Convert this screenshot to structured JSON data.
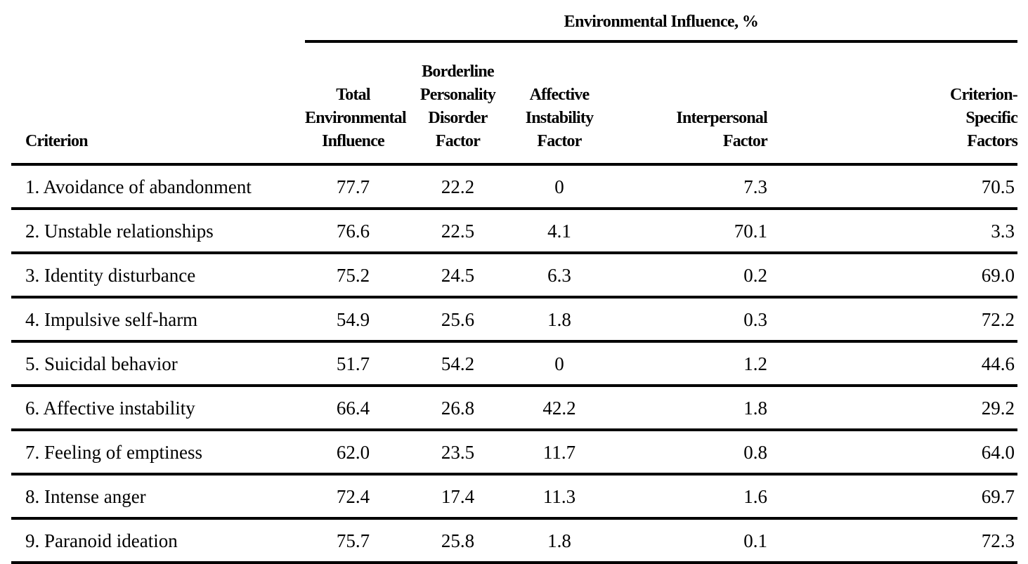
{
  "header": {
    "group_title": "Environmental Influence, %",
    "criterion": "Criterion",
    "total": [
      "Total",
      "Environmental",
      "Influence"
    ],
    "bpd": [
      "Borderline",
      "Personality",
      "Disorder",
      "Factor"
    ],
    "affective": [
      "Affective",
      "Instability",
      "Factor"
    ],
    "interpersonal": [
      "Interpersonal",
      "Factor"
    ],
    "specific": [
      "Criterion-",
      "Specific",
      "Factors"
    ]
  },
  "rows": [
    {
      "criterion": "1. Avoidance of abandonment",
      "total": "77.7",
      "bpd": "22.2",
      "affective": "0",
      "interpersonal": "7.3",
      "specific": "70.5"
    },
    {
      "criterion": "2. Unstable relationships",
      "total": "76.6",
      "bpd": "22.5",
      "affective": "4.1",
      "interpersonal": "70.1",
      "specific": "3.3"
    },
    {
      "criterion": "3. Identity disturbance",
      "total": "75.2",
      "bpd": "24.5",
      "affective": "6.3",
      "interpersonal": "0.2",
      "specific": "69.0"
    },
    {
      "criterion": "4. Impulsive self-harm",
      "total": "54.9",
      "bpd": "25.6",
      "affective": "1.8",
      "interpersonal": "0.3",
      "specific": "72.2"
    },
    {
      "criterion": "5. Suicidal behavior",
      "total": "51.7",
      "bpd": "54.2",
      "affective": "0",
      "interpersonal": "1.2",
      "specific": "44.6"
    },
    {
      "criterion": "6. Affective instability",
      "total": "66.4",
      "bpd": "26.8",
      "affective": "42.2",
      "interpersonal": "1.8",
      "specific": "29.2"
    },
    {
      "criterion": "7. Feeling of emptiness",
      "total": "62.0",
      "bpd": "23.5",
      "affective": "11.7",
      "interpersonal": "0.8",
      "specific": "64.0"
    },
    {
      "criterion": "8. Intense anger",
      "total": "72.4",
      "bpd": "17.4",
      "affective": "11.3",
      "interpersonal": "1.6",
      "specific": "69.7"
    },
    {
      "criterion": "9. Paranoid ideation",
      "total": "75.7",
      "bpd": "25.8",
      "affective": "1.8",
      "interpersonal": "0.1",
      "specific": "72.3"
    }
  ]
}
